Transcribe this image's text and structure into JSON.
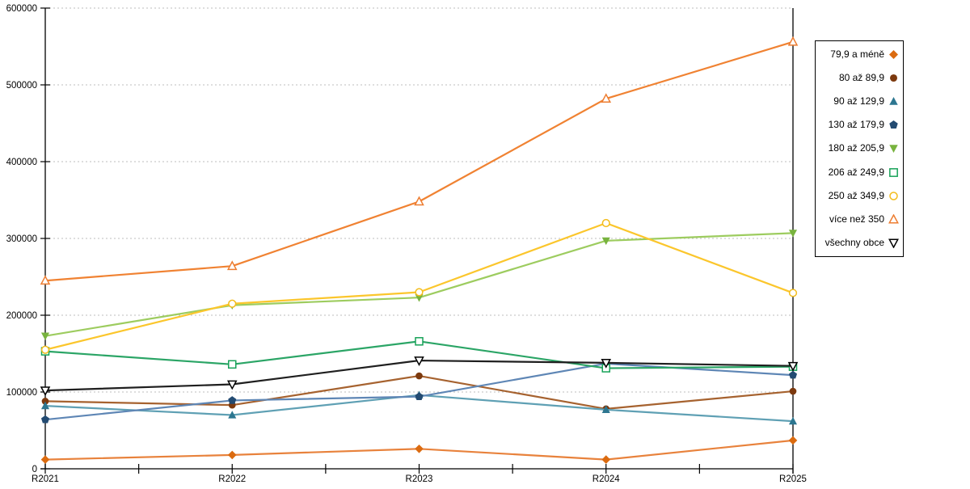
{
  "chart_data": {
    "type": "line",
    "title": "",
    "xlabel": "",
    "ylabel": "",
    "categories": [
      "R2021",
      "R2022",
      "R2023",
      "R2024",
      "R2025"
    ],
    "ylim": [
      0,
      600000
    ],
    "y_tick_step": 100000,
    "y_tick_labels": [
      "0",
      "100000",
      "200000",
      "300000",
      "400000",
      "500000",
      "600000"
    ],
    "grid": "horizontal-dotted",
    "x_minor_ticks_between_categories": true,
    "legend_position": "right-outside-boxed",
    "series": [
      {
        "name": "79,9 a méně",
        "marker": "diamond",
        "filled": true,
        "line_color": "#E8823C",
        "marker_color": "#DB6B10",
        "values": [
          12000,
          18000,
          26000,
          12000,
          37000
        ]
      },
      {
        "name": "80 až 89,9",
        "marker": "circle",
        "filled": true,
        "line_color": "#A6622F",
        "marker_color": "#7C390E",
        "values": [
          88000,
          83000,
          121000,
          78000,
          101000
        ]
      },
      {
        "name": "90 až 129,9",
        "marker": "triangle-up",
        "filled": true,
        "line_color": "#5FA0B4",
        "marker_color": "#2C7690",
        "values": [
          82000,
          70000,
          96000,
          77000,
          62000
        ]
      },
      {
        "name": "130 až 179,9",
        "marker": "pentagon",
        "filled": true,
        "line_color": "#5E86B5",
        "marker_color": "#234B72",
        "values": [
          64000,
          89000,
          94000,
          137000,
          122000
        ]
      },
      {
        "name": "180 až 205,9",
        "marker": "triangle-down",
        "filled": true,
        "line_color": "#9DCC5F",
        "marker_color": "#78B33E",
        "values": [
          173000,
          213000,
          223000,
          297000,
          307000
        ]
      },
      {
        "name": "206 až 249,9",
        "marker": "square",
        "filled": false,
        "line_color": "#2BA566",
        "marker_color": "#17A258",
        "values": [
          153000,
          136000,
          166000,
          131000,
          133000
        ]
      },
      {
        "name": "250 až 349,9",
        "marker": "circle",
        "filled": false,
        "line_color": "#FBC62C",
        "marker_color": "#F3BC1C",
        "values": [
          155000,
          215000,
          230000,
          320000,
          229000
        ]
      },
      {
        "name": "více než 350",
        "marker": "triangle-up",
        "filled": false,
        "line_color": "#F08232",
        "marker_color": "#ED7D31",
        "values": [
          245000,
          264000,
          348000,
          482000,
          556000
        ]
      },
      {
        "name": "všechny obce",
        "marker": "triangle-down",
        "filled": false,
        "line_color": "#1F1F1F",
        "marker_color": "#000000",
        "values": [
          102000,
          110000,
          141000,
          138000,
          134000
        ]
      }
    ]
  },
  "colors": {
    "background": "#FFFFFF",
    "axis": "#000000",
    "grid": "#BDBDBD",
    "legend_border": "#000000"
  }
}
